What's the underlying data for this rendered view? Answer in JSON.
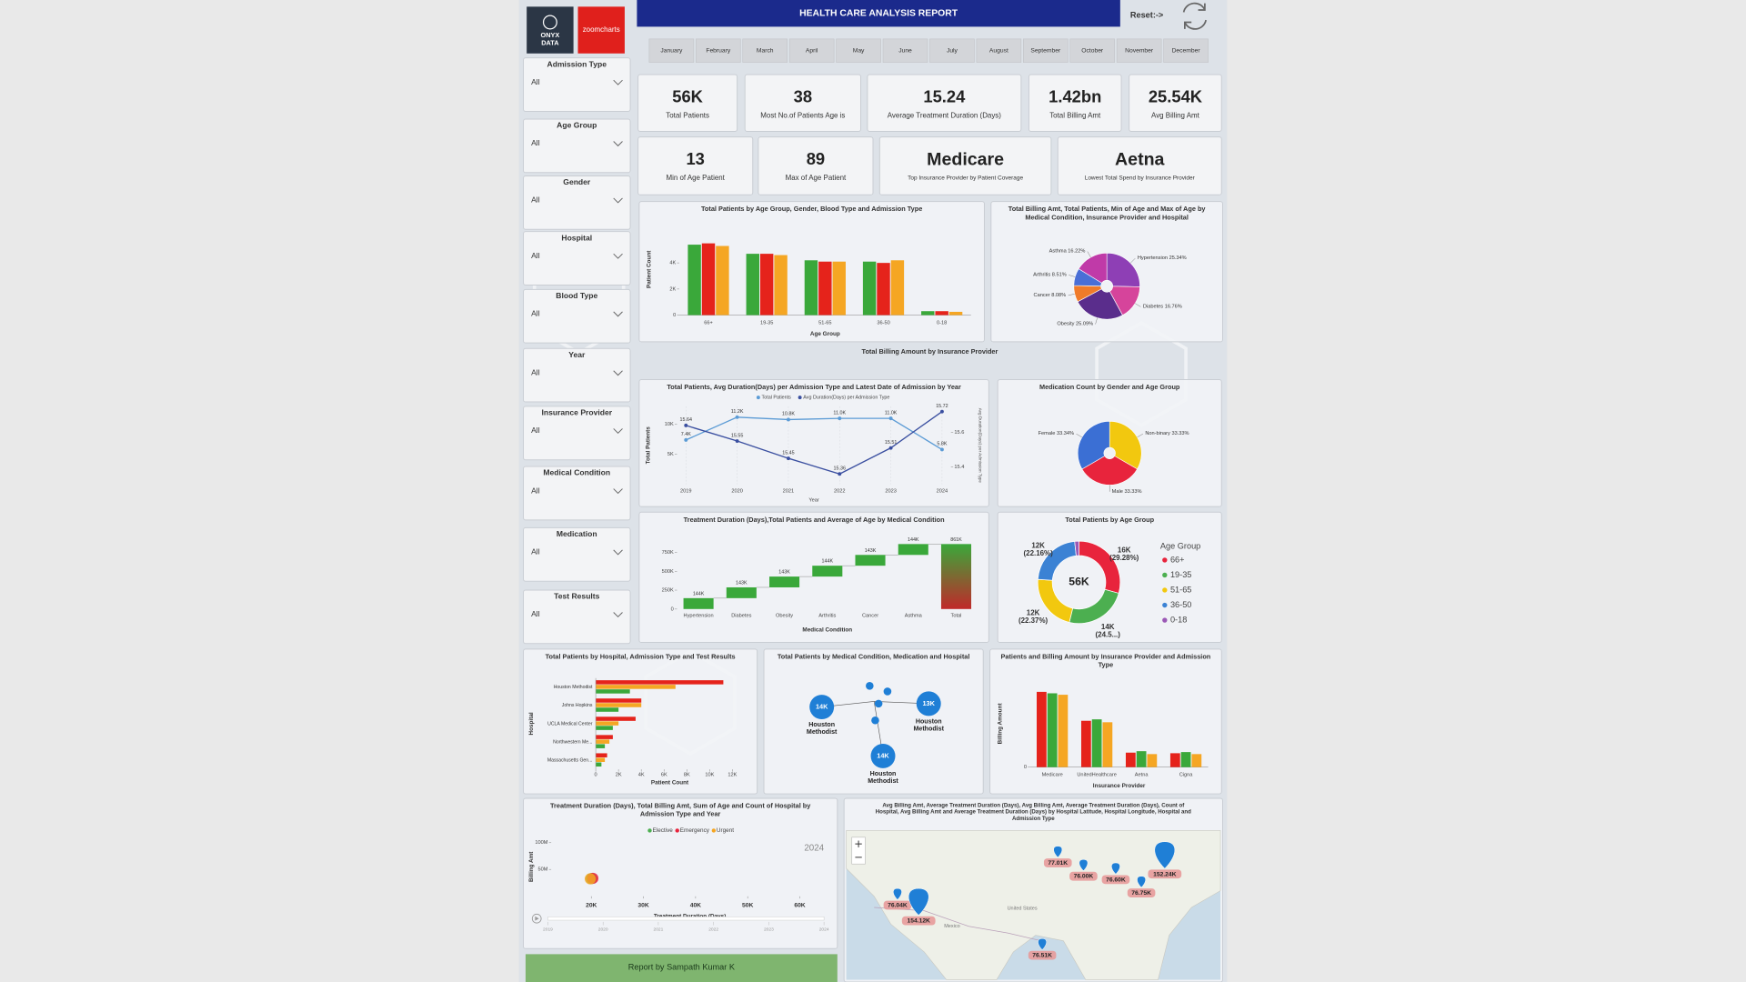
{
  "header": {
    "logo_top": "ONYX",
    "logo_bottom": "DATA",
    "logo2": "zoomcharts",
    "title": "HEALTH CARE ANALYSIS REPORT",
    "reset": "Reset:->"
  },
  "months": [
    "January",
    "February",
    "March",
    "April",
    "May",
    "June",
    "July",
    "August",
    "September",
    "October",
    "November",
    "December"
  ],
  "filters": [
    {
      "label": "Admission Type",
      "value": "All"
    },
    {
      "label": "Age Group",
      "value": "All"
    },
    {
      "label": "Gender",
      "value": "All"
    },
    {
      "label": "Hospital",
      "value": "All"
    },
    {
      "label": "Blood Type",
      "value": "All"
    },
    {
      "label": "Year",
      "value": "All"
    },
    {
      "label": "Insurance Provider",
      "value": "All"
    },
    {
      "label": "Medical Condition",
      "value": "All"
    },
    {
      "label": "Medication",
      "value": "All"
    },
    {
      "label": "Test Results",
      "value": "All"
    }
  ],
  "kpis": [
    {
      "value": "56K",
      "label": "Total Patients"
    },
    {
      "value": "38",
      "label": "Most No.of Patients Age is"
    },
    {
      "value": "15.24",
      "label": "Average Treatment Duration (Days)"
    },
    {
      "value": "1.42bn",
      "label": "Total Billing Amt"
    },
    {
      "value": "25.54K",
      "label": "Avg Billing Amt"
    },
    {
      "value": "13",
      "label": "Min of Age Patient"
    },
    {
      "value": "89",
      "label": "Max of Age Patient"
    },
    {
      "value": "Medicare",
      "label": "Top Insurance Provider by Patient Coverage"
    },
    {
      "value": "Aetna",
      "label": "Lowest Total Spend by Insurance Provider"
    }
  ],
  "floating_title": "Total Billing Amount by Insurance Provider",
  "decomposition": {
    "title": "Total Patients by Medical Condition, Medication and Hospital",
    "nodes": [
      {
        "value": "14K",
        "label": "Houston Methodist"
      },
      {
        "value": "13K",
        "label": "Houston Methodist"
      },
      {
        "value": "14K",
        "label": "Houston Methodist"
      }
    ]
  },
  "map": {
    "title": "Avg Billing Amt, Average Treatment Duration (Days), Avg Billing Amt, Average Treatment Duration (Days), Count of Hospital, Avg Billing Amt and Average Treatment Duration (Days) by Hospital Latitude, Hospital Longitude, Hospital and Admission Type",
    "labels": [
      "77.01K",
      "76.00K",
      "76.60K",
      "76.75K",
      "152.24K",
      "76.04K",
      "154.12K",
      "76.51K"
    ],
    "place_labels": [
      "United States",
      "Mexico"
    ]
  },
  "footer": "Report by Sampath Kumar K",
  "chart_data": [
    {
      "type": "bar",
      "title": "Total Patients by Age Group, Gender, Blood Type and Admission Type",
      "x_label": "Age Group",
      "y_label": "Patient Count",
      "categories": [
        "66+",
        "19-35",
        "51-65",
        "36-50",
        "0-18"
      ],
      "series": [
        {
          "color": "#3aa83a",
          "values": [
            5400,
            4700,
            4200,
            4100,
            300
          ]
        },
        {
          "color": "#e5231b",
          "values": [
            5500,
            4700,
            4100,
            4000,
            300
          ]
        },
        {
          "color": "#f5a623",
          "values": [
            5300,
            4600,
            4100,
            4200,
            250
          ]
        }
      ],
      "ylim": [
        0,
        7000
      ],
      "yticks": [
        0,
        {
          "value": 2000,
          "label": "2K"
        },
        {
          "value": 4000,
          "label": "4K"
        }
      ]
    },
    {
      "type": "pie",
      "title": "Total Billing Amt, Total Patients, Min of Age and Max of Age by Medical Condition, Insurance Provider and Hospital",
      "categories": [
        "Hypertension",
        "Diabetes",
        "Obesity",
        "Cancer",
        "Arthritis",
        "Asthma"
      ],
      "values": [
        25.34,
        16.76,
        25.09,
        8.08,
        8.51,
        16.22
      ],
      "value_labels": [
        "25.34%",
        "16.76%",
        "25.09%",
        "8.08%",
        "8.51%",
        "16.22%"
      ],
      "colors": [
        "#8e3fb5",
        "#d6449b",
        "#5a2d8c",
        "#f07b2a",
        "#4a6fd6",
        "#c03aa8"
      ]
    },
    {
      "type": "line",
      "title": "Total Patients, Avg Duration(Days) per Admission Type and Latest Date of Admission by Year",
      "x_label": "Year",
      "y_label": "Total Patients",
      "y2_label": "Avg Duration(Days) per Admission Type",
      "x": [
        2019,
        2020,
        2021,
        2022,
        2023,
        2024
      ],
      "xlim": [
        2019,
        2024
      ],
      "xticks": [
        2019,
        2020,
        2021,
        2022,
        2023,
        2024
      ],
      "series": [
        {
          "name": "Total Patients",
          "color": "#5b9bd5",
          "values": [
            7400,
            11200,
            10800,
            11000,
            11000,
            5800
          ],
          "value_labels": [
            "7.4K",
            "11.2K",
            "10.8K",
            "11.0K",
            "11.0K",
            "5.8K"
          ]
        },
        {
          "name": "Avg Duration(Days) per Admission Type",
          "color": "#3a4fa0",
          "axis": "y2",
          "values": [
            15.64,
            15.55,
            15.45,
            15.36,
            15.51,
            15.72
          ]
        }
      ],
      "ylim": [
        0,
        13000
      ],
      "yticks": [
        {
          "value": 5000,
          "label": "5K"
        },
        {
          "value": 10000,
          "label": "10K"
        }
      ],
      "y2lim": [
        15.3,
        15.75
      ],
      "y2ticks": [
        15.4,
        15.6
      ]
    },
    {
      "type": "pie",
      "title": "Medication Count by Gender and Age Group",
      "categories": [
        "Non-binary",
        "Male",
        "Female"
      ],
      "values": [
        33.33,
        33.33,
        33.34
      ],
      "value_labels": [
        "33.33%",
        "33.33%",
        "33.34%"
      ],
      "colors": [
        "#f2c80f",
        "#e8243c",
        "#3b6fd4"
      ]
    },
    {
      "type": "waterfall",
      "title": "Treatment Duration (Days),Total Patients and Average of Age by Medical Condition",
      "x_label": "Medical Condition",
      "categories": [
        "Hypertension",
        "Diabetes",
        "Obesity",
        "Arthritis",
        "Cancer",
        "Asthma",
        "Total"
      ],
      "values": [
        144000,
        143000,
        143000,
        144000,
        143000,
        144000,
        861000
      ],
      "value_labels": [
        "144K",
        "143K",
        "143K",
        "144K",
        "143K",
        "144K",
        "861K"
      ],
      "color": "#3aa83a",
      "ylim": [
        0,
        900000
      ],
      "yticks": [
        0,
        {
          "value": 250000,
          "label": "250K"
        },
        {
          "value": 500000,
          "label": "500K"
        },
        {
          "value": 750000,
          "label": "750K"
        }
      ]
    },
    {
      "type": "donut",
      "title": "Total Patients by Age Group",
      "center_label": "56K",
      "legend_title": "Age Group",
      "categories": [
        "66+",
        "19-35",
        "51-65",
        "36-50",
        "0-18"
      ],
      "values": [
        29.28,
        24.5,
        22.37,
        22.16,
        1.69
      ],
      "value_labels": [
        "16K (29.28%)",
        "14K (24.5...)",
        "12K (22.37%)",
        "12K (22.16%)",
        null
      ],
      "colors": [
        "#e8243c",
        "#4caf50",
        "#f2c80f",
        "#3b82d4",
        "#9b59b6"
      ]
    },
    {
      "type": "hbar",
      "title": "Total Patients by Hospital, Admission Type and Test Results",
      "x_label": "Patient Count",
      "y_label": "Hospital",
      "categories": [
        "Houston Methodist",
        "Johns Hopkins",
        "UCLA Medical Center",
        "Northwestern Me...",
        "Massachusetts Gen..."
      ],
      "series": [
        {
          "color": "#e5231b",
          "values": [
            11200,
            4000,
            3500,
            1500,
            1000
          ]
        },
        {
          "color": "#f5a623",
          "values": [
            7000,
            4000,
            2000,
            1200,
            800
          ]
        },
        {
          "color": "#3aa83a",
          "values": [
            3000,
            2000,
            1500,
            800,
            500
          ]
        }
      ],
      "xlim": [
        0,
        13000
      ],
      "xticks": [
        0,
        {
          "value": 2000,
          "label": "2K"
        },
        {
          "value": 4000,
          "label": "4K"
        },
        {
          "value": 6000,
          "label": "6K"
        },
        {
          "value": 8000,
          "label": "8K"
        },
        {
          "value": 10000,
          "label": "10K"
        },
        {
          "value": 12000,
          "label": "12K"
        }
      ]
    },
    {
      "type": "bar",
      "title": "Patients and Billing Amount by Insurance Provider and Admission Type",
      "x_label": "Insurance Provider",
      "y_label": "Billing Amount",
      "categories": [
        "Medicare",
        "UnitedHealthcare",
        "Aetna",
        "Cigna"
      ],
      "series": [
        {
          "color": "#e5231b",
          "values": [
            260000000,
            160000000,
            50000000,
            48000000
          ]
        },
        {
          "color": "#3aa83a",
          "values": [
            255000000,
            165000000,
            55000000,
            52000000
          ]
        },
        {
          "color": "#f5a623",
          "values": [
            250000000,
            155000000,
            45000000,
            45000000
          ]
        }
      ],
      "ylim": [
        0,
        300000000
      ],
      "yticks": [
        0
      ]
    },
    {
      "type": "scatter",
      "title": "Treatment Duration (Days), Total Billing Amt, Sum of Age and Count of Hospital by Admission Type and Year",
      "x_label": "Treatment Duration (Days)",
      "y_label": "Billing Amt",
      "year": "2024",
      "play_years": [
        2019,
        2020,
        2021,
        2022,
        2023,
        2024
      ],
      "series": [
        {
          "name": "Elective",
          "color": "#4caf50",
          "x": [
            20000
          ],
          "values": [
            33000000
          ]
        },
        {
          "name": "Emergency",
          "color": "#e8243c",
          "x": [
            20300
          ],
          "values": [
            33500000
          ]
        },
        {
          "name": "Urgent",
          "color": "#f5a623",
          "x": [
            19800
          ],
          "values": [
            32500000
          ]
        }
      ],
      "xlim": [
        12300,
        65500
      ],
      "xticks": [
        {
          "value": 20000,
          "label": "20K"
        },
        {
          "value": 30000,
          "label": "30K"
        },
        {
          "value": 40000,
          "label": "40K"
        },
        {
          "value": 50000,
          "label": "50K"
        },
        {
          "value": 60000,
          "label": "60K"
        }
      ],
      "ylim": [
        0,
        110000000
      ],
      "yticks": [
        {
          "value": 50000000,
          "label": "50M"
        },
        {
          "value": 100000000,
          "label": "100M"
        }
      ]
    }
  ]
}
